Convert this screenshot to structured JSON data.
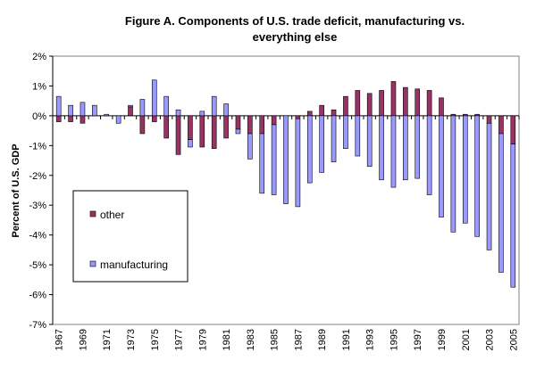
{
  "chart_data": {
    "type": "bar",
    "stacked": true,
    "title": "Figure A. Components of U.S. trade deficit, manufacturing vs. everything else",
    "title_line1": "Figure A. Components of U.S. trade deficit, manufacturing vs.",
    "title_line2": "everything else",
    "ylabel": "Percent of U.S. GDP",
    "xlabel": "",
    "ylim": [
      -7,
      2
    ],
    "y_ticks": [
      "2%",
      "1%",
      "0%",
      "-1%",
      "-2%",
      "-3%",
      "-4%",
      "-5%",
      "-6%",
      "-7%"
    ],
    "y_tick_values": [
      2,
      1,
      0,
      -1,
      -2,
      -3,
      -4,
      -5,
      -6,
      -7
    ],
    "categories": [
      "1967",
      "1968",
      "1969",
      "1970",
      "1971",
      "1972",
      "1973",
      "1974",
      "1975",
      "1976",
      "1977",
      "1978",
      "1979",
      "1980",
      "1981",
      "1982",
      "1983",
      "1984",
      "1985",
      "1986",
      "1987",
      "1988",
      "1989",
      "1990",
      "1991",
      "1992",
      "1993",
      "1994",
      "1995",
      "1996",
      "1997",
      "1998",
      "1999",
      "2000",
      "2001",
      "2002",
      "2003",
      "2004",
      "2005"
    ],
    "x_tick_labels": [
      "1967",
      "1969",
      "1971",
      "1973",
      "1975",
      "1977",
      "1979",
      "1981",
      "1983",
      "1985",
      "1987",
      "1989",
      "1991",
      "1993",
      "1995",
      "1997",
      "1999",
      "2001",
      "2003",
      "2005"
    ],
    "series": [
      {
        "name": "other",
        "color": "#993366",
        "values": [
          -0.2,
          -0.2,
          -0.25,
          0,
          0,
          0,
          0.3,
          -0.6,
          -0.2,
          -0.75,
          -1.3,
          -0.8,
          -1.05,
          -1.1,
          -0.75,
          -0.45,
          -0.6,
          -0.6,
          -0.3,
          0,
          -0.1,
          0.15,
          0.35,
          0.2,
          0.65,
          0.85,
          0.75,
          0.85,
          1.15,
          0.95,
          0.9,
          0.85,
          0.6,
          0.05,
          0.05,
          0.05,
          -0.25,
          -0.6,
          -0.95
        ]
      },
      {
        "name": "manufacturing",
        "color": "#9999ff",
        "values": [
          0.65,
          0.35,
          0.45,
          0.35,
          0.05,
          -0.25,
          0.05,
          0.55,
          1.2,
          0.65,
          0.2,
          -0.25,
          0.15,
          0.65,
          0.4,
          -0.15,
          -0.85,
          -2.0,
          -2.35,
          -2.95,
          -2.95,
          -2.25,
          -1.9,
          -1.55,
          -1.1,
          -1.35,
          -1.7,
          -2.15,
          -2.4,
          -2.15,
          -2.1,
          -2.65,
          -3.4,
          -3.9,
          -3.6,
          -4.05,
          -4.25,
          -4.65,
          -4.8
        ]
      }
    ],
    "legend": {
      "position": "bottom-left",
      "order": [
        "other",
        "manufacturing"
      ]
    },
    "grid": false
  }
}
